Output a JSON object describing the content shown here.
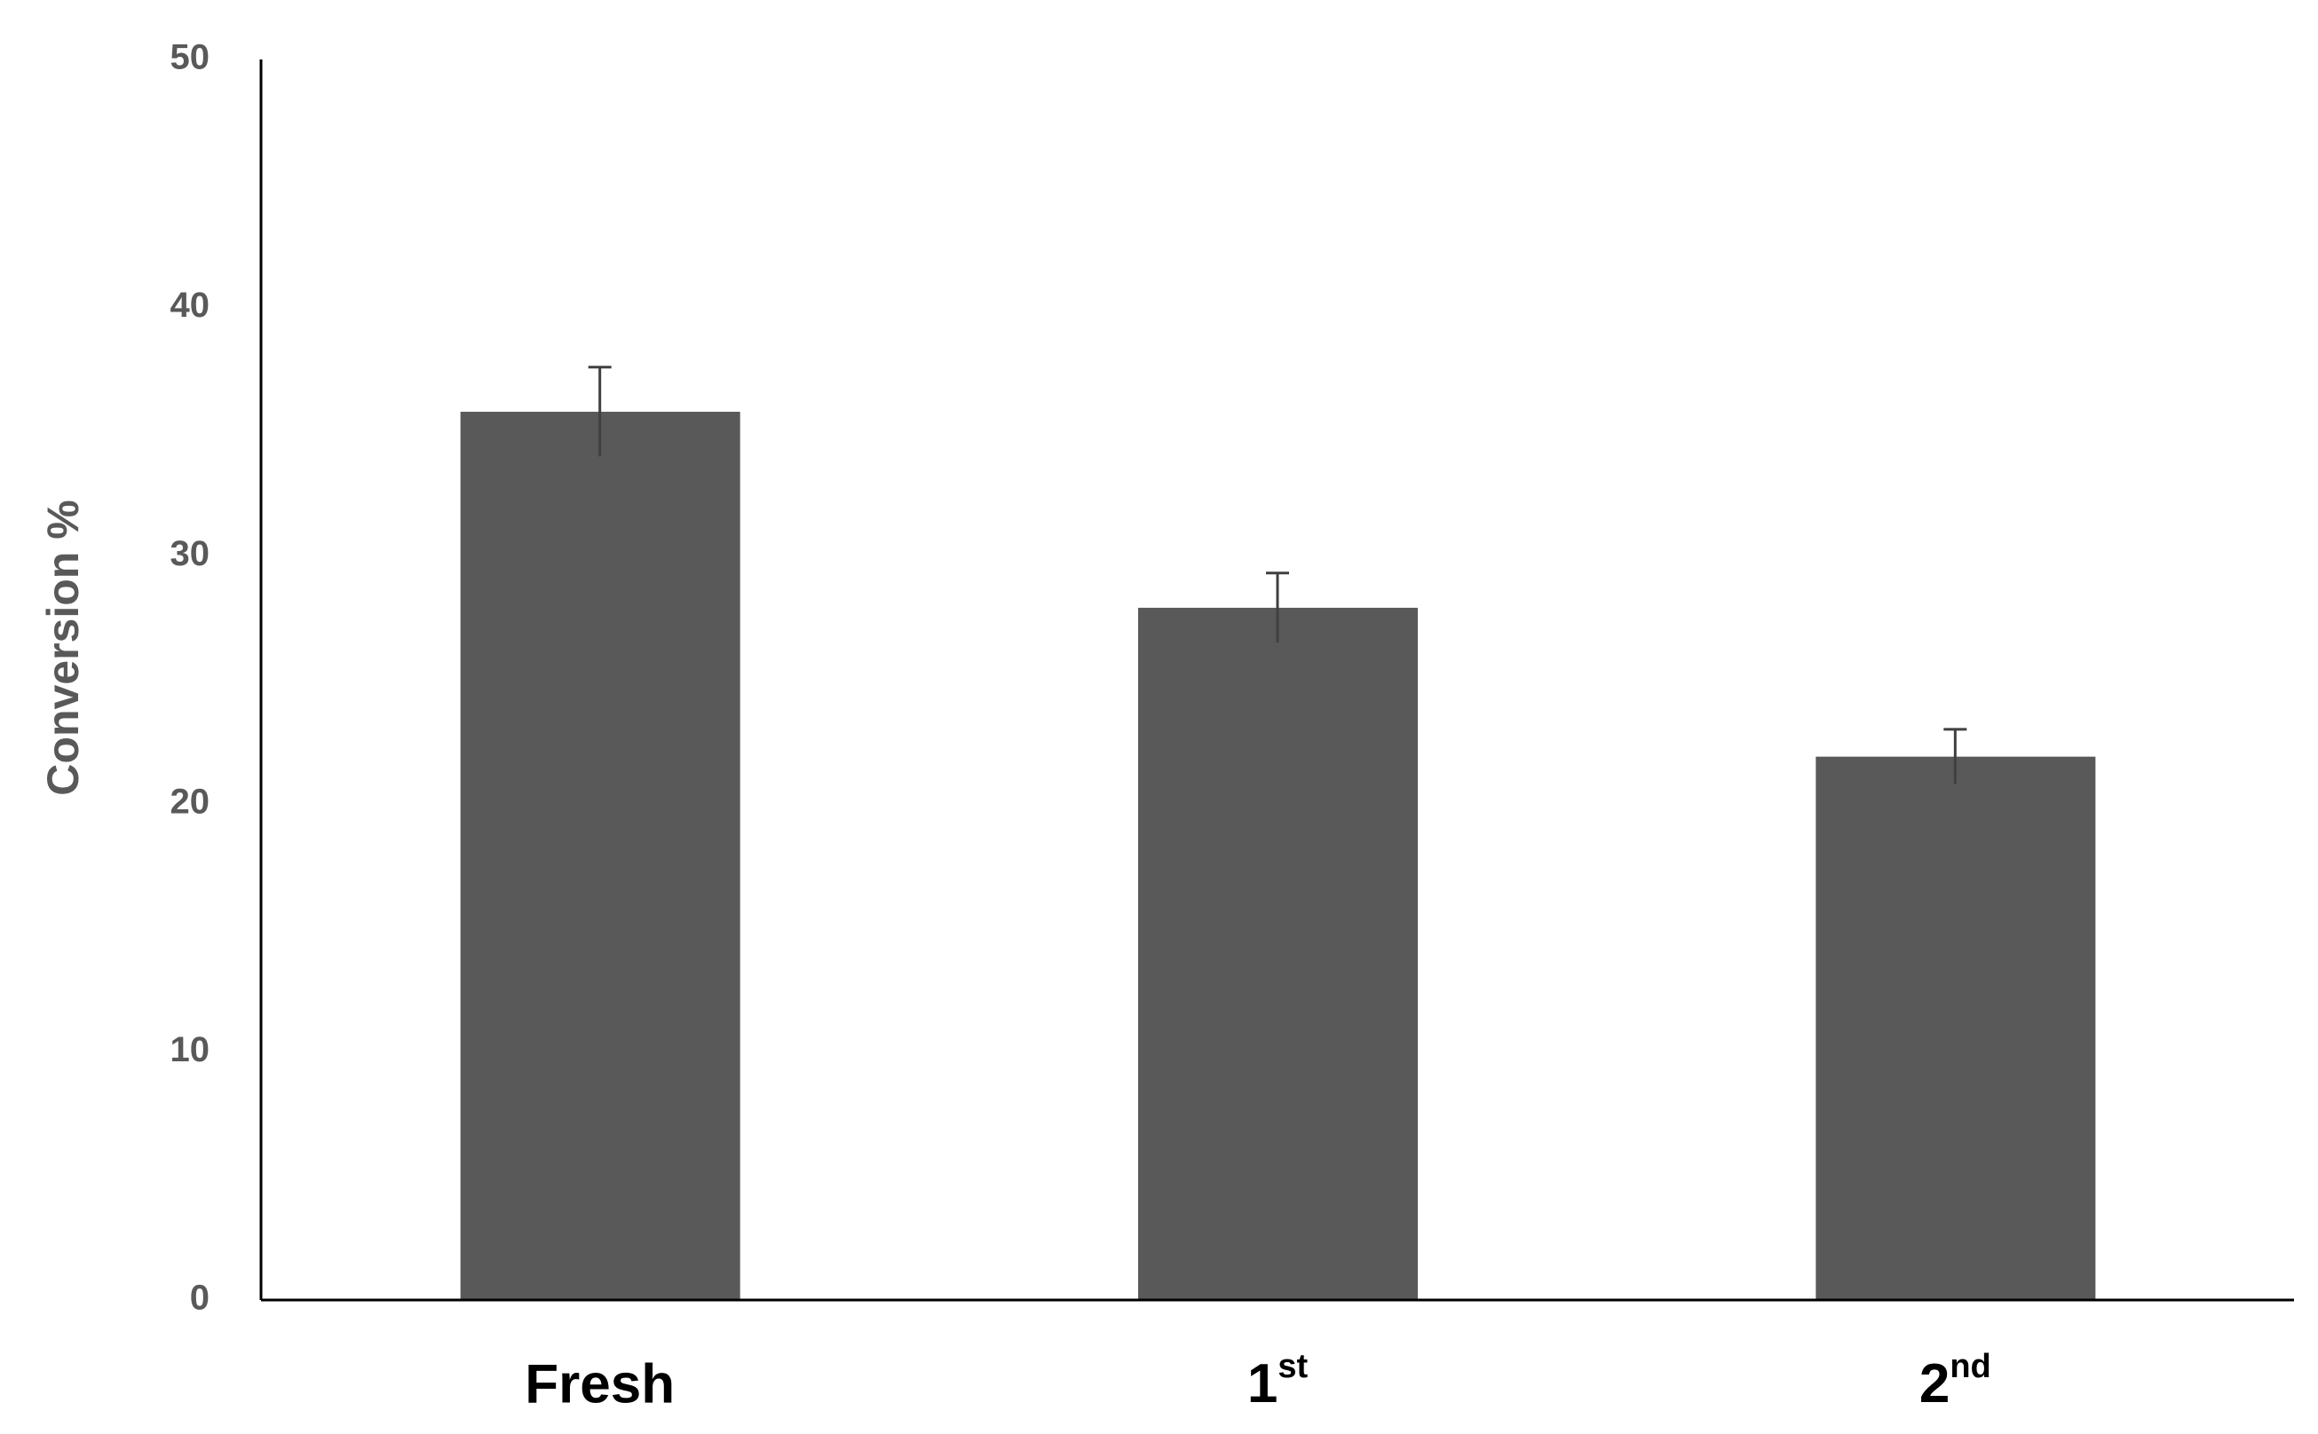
{
  "chart_data": {
    "type": "bar",
    "y_label": "Conversion %",
    "categories": [
      "Fresh",
      "1st",
      "2nd"
    ],
    "values": [
      35.8,
      27.9,
      21.9
    ],
    "errors": [
      1.8,
      1.4,
      1.1
    ],
    "color": "#595959",
    "ylim": [
      0,
      50
    ],
    "yticks": [
      0,
      10,
      20,
      30,
      40,
      50
    ],
    "grid": false
  }
}
